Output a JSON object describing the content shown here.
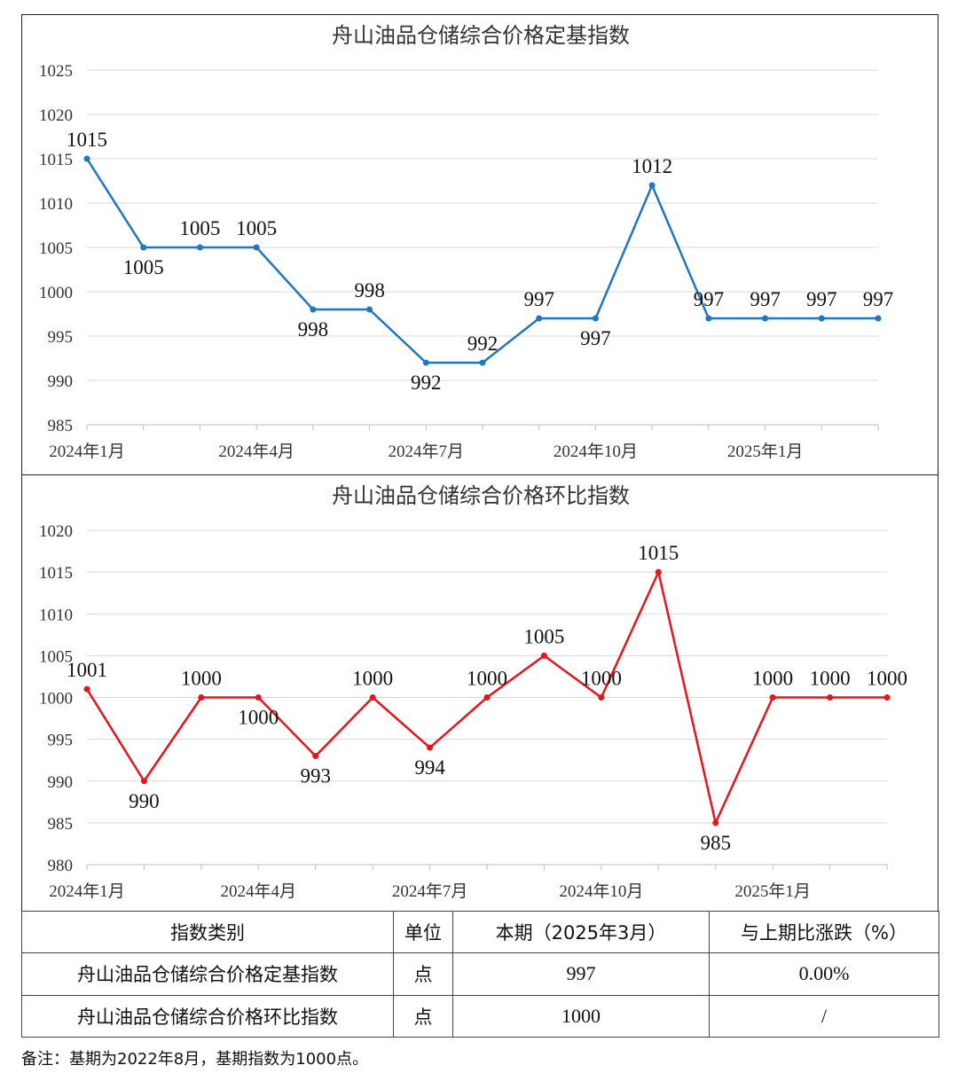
{
  "chart_data": [
    {
      "type": "line",
      "title": "舟山油品仓储综合价格定基指数",
      "color": "#1f77c4",
      "x": [
        "2024年1月",
        "2024年2月",
        "2024年3月",
        "2024年4月",
        "2024年5月",
        "2024年6月",
        "2024年7月",
        "2024年8月",
        "2024年9月",
        "2024年10月",
        "2024年11月",
        "2024年12月",
        "2025年1月",
        "2025年2月",
        "2025年3月"
      ],
      "values": [
        1015,
        1005,
        1005,
        1005,
        998,
        998,
        992,
        992,
        997,
        997,
        1012,
        997,
        997,
        997,
        997
      ],
      "x_tick_labels": [
        "2024年1月",
        "2024年4月",
        "2024年7月",
        "2024年10月",
        "2025年1月"
      ],
      "ylim": [
        985,
        1025
      ],
      "y_ticks": [
        985,
        990,
        995,
        1000,
        1005,
        1010,
        1015,
        1020,
        1025
      ],
      "grid": true
    },
    {
      "type": "line",
      "title": "舟山油品仓储综合价格环比指数",
      "color": "#e8141c",
      "x": [
        "2024年1月",
        "2024年2月",
        "2024年3月",
        "2024年4月",
        "2024年5月",
        "2024年6月",
        "2024年7月",
        "2024年8月",
        "2024年9月",
        "2024年10月",
        "2024年11月",
        "2024年12月",
        "2025年1月",
        "2025年2月",
        "2025年3月"
      ],
      "values": [
        1001,
        990,
        1000,
        1000,
        993,
        1000,
        994,
        1000,
        1005,
        1000,
        1015,
        985,
        1000,
        1000,
        1000
      ],
      "x_tick_labels": [
        "2024年1月",
        "2024年4月",
        "2024年7月",
        "2024年10月",
        "2025年1月"
      ],
      "ylim": [
        980,
        1020
      ],
      "y_ticks": [
        980,
        985,
        990,
        995,
        1000,
        1005,
        1010,
        1015,
        1020
      ],
      "grid": true
    }
  ],
  "table": {
    "headers": [
      "指数类别",
      "单位",
      "本期（2025年3月）",
      "与上期比涨跌（%）"
    ],
    "rows": [
      [
        "舟山油品仓储综合价格定基指数",
        "点",
        "997",
        "0.00%"
      ],
      [
        "舟山油品仓储综合价格环比指数",
        "点",
        "1000",
        "/"
      ]
    ]
  },
  "note": "备注：基期为2022年8月，基期指数为1000点。"
}
